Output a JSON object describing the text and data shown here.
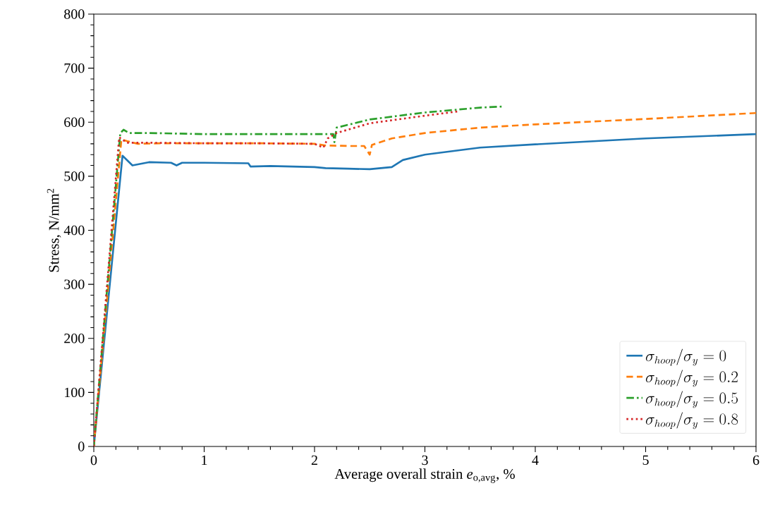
{
  "chart_data": {
    "type": "line",
    "xlabel": "Average overall strain *e*$_{o,avg}$, %",
    "ylabel": "Stress, N/mm$^{2}$",
    "xlim": [
      0,
      6
    ],
    "ylim": [
      0,
      800
    ],
    "xticks": [
      0,
      1,
      2,
      3,
      4,
      5,
      6
    ],
    "yticks": [
      0,
      100,
      200,
      300,
      400,
      500,
      600,
      700,
      800
    ],
    "grid": false,
    "legend": "bottom right",
    "series": [
      {
        "name": "\\sigma_{hoop}/\\sigma_{y} = 0",
        "color": "#1f77b4",
        "line_style": "solid",
        "x": [
          0,
          0.26,
          0.35,
          0.5,
          0.7,
          0.75,
          0.8,
          1.0,
          1.4,
          1.42,
          1.6,
          2.0,
          2.1,
          2.3,
          2.5,
          2.7,
          2.8,
          3.0,
          3.5,
          4.0,
          5.0,
          6.0
        ],
        "values": [
          0,
          538,
          520,
          526,
          525,
          520,
          525,
          525,
          524,
          518,
          519,
          517,
          515,
          514,
          513,
          517,
          530,
          540,
          553,
          559,
          570,
          578
        ]
      },
      {
        "name": "\\sigma_{hoop}/\\sigma_{y} = 0.2",
        "color": "#ff7f0e",
        "line_style": "dashed",
        "x": [
          0,
          0.25,
          0.3,
          0.4,
          0.6,
          1.0,
          1.5,
          2.0,
          2.1,
          2.3,
          2.45,
          2.5,
          2.52,
          2.7,
          3.0,
          3.5,
          4.0,
          5.0,
          6.0
        ],
        "values": [
          0,
          568,
          565,
          560,
          561,
          561,
          561,
          560,
          557,
          556,
          556,
          540,
          558,
          570,
          580,
          590,
          596,
          606,
          617
        ]
      },
      {
        "name": "\\sigma_{hoop}/\\sigma_{y} = 0.5",
        "color": "#2ca02c",
        "line_style": "dashdot",
        "x": [
          0,
          0.24,
          0.27,
          0.32,
          0.5,
          1.0,
          1.5,
          2.0,
          2.17,
          2.18,
          2.2,
          2.5,
          3.0,
          3.5,
          3.7
        ],
        "values": [
          0,
          580,
          586,
          580,
          580,
          578,
          578,
          578,
          578,
          563,
          590,
          605,
          618,
          627,
          629
        ]
      },
      {
        "name": "\\sigma_{hoop}/\\sigma_{y} = 0.8",
        "color": "#d62728",
        "line_style": "dotted",
        "x": [
          0,
          0.23,
          0.3,
          0.5,
          1.0,
          1.5,
          2.0,
          2.08,
          2.12,
          2.2,
          2.5,
          3.0,
          3.3
        ],
        "values": [
          0,
          572,
          562,
          562,
          561,
          561,
          560,
          553,
          570,
          580,
          598,
          612,
          620
        ]
      }
    ]
  }
}
